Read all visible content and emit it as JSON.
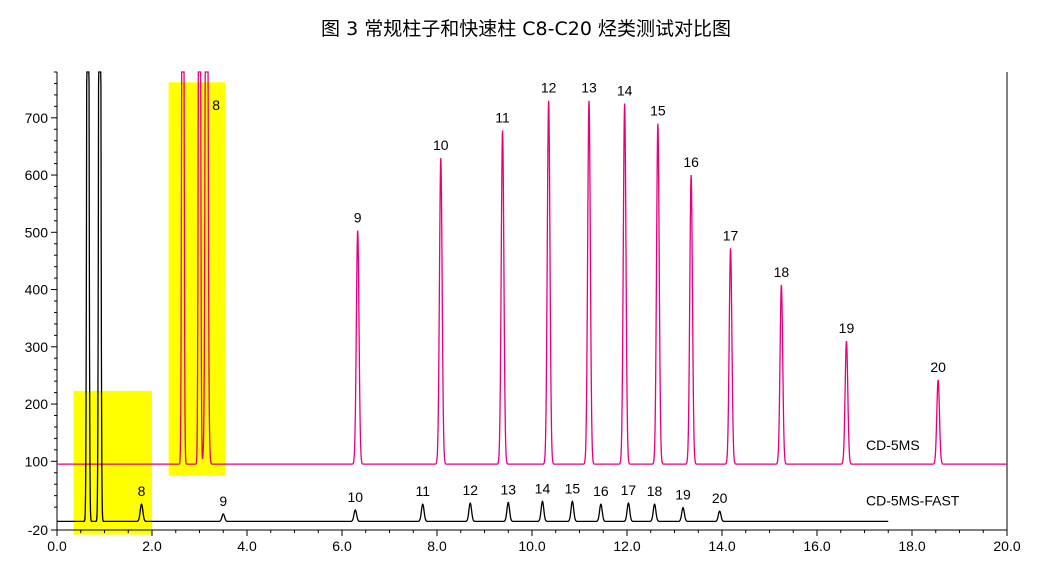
{
  "title": "图 3 常规柱子和快速柱 C8-C20 烃类测试对比图",
  "chart_data": {
    "type": "line",
    "title": "图 3 常规柱子和快速柱 C8-C20 烃类测试对比图",
    "xlim": [
      0.0,
      20.0
    ],
    "ylim": [
      -20,
      780
    ],
    "x_ticks": [
      "0.0",
      "2.0",
      "4.0",
      "6.0",
      "8.0",
      "10.0",
      "12.0",
      "14.0",
      "16.0",
      "18.0",
      "20.0"
    ],
    "y_ticks": [
      "-20",
      "100",
      "200",
      "300",
      "400",
      "500",
      "600",
      "700"
    ],
    "x_tick_values": [
      0,
      2,
      4,
      6,
      8,
      10,
      12,
      14,
      16,
      18,
      20
    ],
    "y_tick_values": [
      -20,
      100,
      200,
      300,
      400,
      500,
      600,
      700
    ],
    "series": [
      {
        "name": "CD-5MS",
        "color": "#e6007e",
        "baseline": 95,
        "x_end": 20.0,
        "solvent": [
          2.65,
          3.0,
          3.15
        ],
        "peaks": [
          {
            "label": "8",
            "x": 3.15,
            "y": 700
          },
          {
            "label": "9",
            "x": 6.33,
            "y": 503
          },
          {
            "label": "10",
            "x": 8.08,
            "y": 630
          },
          {
            "label": "11",
            "x": 9.38,
            "y": 678
          },
          {
            "label": "12",
            "x": 10.35,
            "y": 730
          },
          {
            "label": "13",
            "x": 11.2,
            "y": 730
          },
          {
            "label": "14",
            "x": 11.95,
            "y": 725
          },
          {
            "label": "15",
            "x": 12.65,
            "y": 690
          },
          {
            "label": "16",
            "x": 13.35,
            "y": 600
          },
          {
            "label": "17",
            "x": 14.18,
            "y": 472
          },
          {
            "label": "18",
            "x": 15.25,
            "y": 408
          },
          {
            "label": "19",
            "x": 16.62,
            "y": 310
          },
          {
            "label": "20",
            "x": 18.55,
            "y": 242
          }
        ]
      },
      {
        "name": "CD-5MS-FAST",
        "color": "#000000",
        "baseline": -5,
        "x_end": 17.5,
        "solvent": [
          0.65,
          0.9
        ],
        "peaks": [
          {
            "label": "8",
            "x": 1.78,
            "y": 25
          },
          {
            "label": "9",
            "x": 3.5,
            "y": 8
          },
          {
            "label": "10",
            "x": 6.28,
            "y": 15
          },
          {
            "label": "11",
            "x": 7.7,
            "y": 25
          },
          {
            "label": "12",
            "x": 8.7,
            "y": 27
          },
          {
            "label": "13",
            "x": 9.5,
            "y": 28
          },
          {
            "label": "14",
            "x": 10.22,
            "y": 30
          },
          {
            "label": "15",
            "x": 10.85,
            "y": 30
          },
          {
            "label": "16",
            "x": 11.45,
            "y": 25
          },
          {
            "label": "17",
            "x": 12.03,
            "y": 27
          },
          {
            "label": "18",
            "x": 12.58,
            "y": 25
          },
          {
            "label": "19",
            "x": 13.18,
            "y": 19
          },
          {
            "label": "20",
            "x": 13.95,
            "y": 13
          }
        ]
      }
    ],
    "highlights": [
      {
        "x0": 0.35,
        "x1": 2.0,
        "y0": -28,
        "y1": 223,
        "color": "#ffff00"
      },
      {
        "x0": 2.35,
        "x1": 3.55,
        "y0": 75,
        "y1": 762,
        "color": "#ffff00"
      }
    ]
  }
}
